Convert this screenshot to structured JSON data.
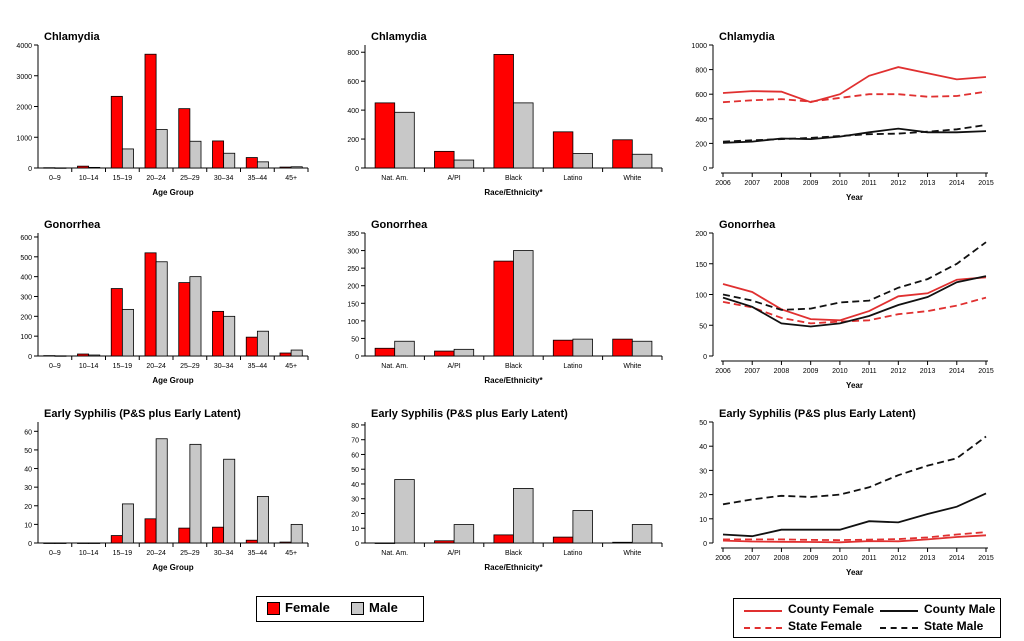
{
  "colors": {
    "female": "#ff0000",
    "male": "#c8c8c8",
    "county_female": "#e03030",
    "state_female": "#e03030",
    "county_male": "#111111",
    "state_male": "#111111"
  },
  "bar_legend": {
    "female": "Female",
    "male": "Male"
  },
  "line_legend": {
    "county_female": "County Female",
    "county_male": "County Male",
    "state_female": "State Female",
    "state_male": "State Male"
  },
  "chart_data": [
    {
      "type": "bar",
      "title": "Chlamydia",
      "xlabel": "Age Group",
      "ylim": [
        0,
        4000
      ],
      "yticks": [
        0,
        1000,
        2000,
        3000,
        4000
      ],
      "categories": [
        "0–9",
        "10–14",
        "15–19",
        "20–24",
        "25–29",
        "30–34",
        "35–44",
        "45+"
      ],
      "series": [
        {
          "name": "Female",
          "values": [
            10,
            60,
            2330,
            3700,
            1930,
            880,
            340,
            30
          ]
        },
        {
          "name": "Male",
          "values": [
            5,
            20,
            620,
            1250,
            870,
            480,
            200,
            40
          ]
        }
      ]
    },
    {
      "type": "bar",
      "title": "Chlamydia",
      "xlabel": "Race/Ethnicity*",
      "ylim": [
        0,
        850
      ],
      "yticks": [
        0,
        200,
        400,
        600,
        800
      ],
      "categories": [
        "Nat. Am.",
        "A/PI",
        "Black",
        "Latino",
        "White"
      ],
      "series": [
        {
          "name": "Female",
          "values": [
            450,
            115,
            785,
            250,
            195
          ]
        },
        {
          "name": "Male",
          "values": [
            385,
            55,
            450,
            100,
            95
          ]
        }
      ]
    },
    {
      "type": "line",
      "title": "Chlamydia",
      "xlabel": "Year",
      "ylim": [
        0,
        1000
      ],
      "yticks": [
        0,
        200,
        400,
        600,
        800,
        1000
      ],
      "x": [
        2006,
        2007,
        2008,
        2009,
        2010,
        2011,
        2012,
        2013,
        2014,
        2015
      ],
      "series": [
        {
          "name": "County Female",
          "values": [
            610,
            625,
            620,
            535,
            600,
            750,
            820,
            770,
            720,
            740
          ]
        },
        {
          "name": "State Female",
          "values": [
            535,
            550,
            560,
            540,
            570,
            600,
            600,
            580,
            585,
            620
          ]
        },
        {
          "name": "County Male",
          "values": [
            205,
            215,
            240,
            235,
            255,
            290,
            320,
            290,
            290,
            300
          ]
        },
        {
          "name": "State Male",
          "values": [
            215,
            225,
            235,
            245,
            260,
            275,
            280,
            295,
            315,
            350
          ]
        }
      ]
    },
    {
      "type": "bar",
      "title": "Gonorrhea",
      "xlabel": "Age Group",
      "ylim": [
        0,
        620
      ],
      "yticks": [
        0,
        100,
        200,
        300,
        400,
        500,
        600
      ],
      "categories": [
        "0–9",
        "10–14",
        "15–19",
        "20–24",
        "25–29",
        "30–34",
        "35–44",
        "45+"
      ],
      "series": [
        {
          "name": "Female",
          "values": [
            2,
            10,
            340,
            520,
            370,
            225,
            95,
            15
          ]
        },
        {
          "name": "Male",
          "values": [
            1,
            5,
            235,
            475,
            400,
            200,
            125,
            30
          ]
        }
      ]
    },
    {
      "type": "bar",
      "title": "Gonorrhea",
      "xlabel": "Race/Ethnicity*",
      "ylim": [
        0,
        350
      ],
      "yticks": [
        0,
        50,
        100,
        150,
        200,
        250,
        300,
        350
      ],
      "categories": [
        "Nat. Am.",
        "A/PI",
        "Black",
        "Latino",
        "White"
      ],
      "series": [
        {
          "name": "Female",
          "values": [
            22,
            14,
            270,
            45,
            48
          ]
        },
        {
          "name": "Male",
          "values": [
            42,
            19,
            300,
            48,
            42
          ]
        }
      ]
    },
    {
      "type": "line",
      "title": "Gonorrhea",
      "xlabel": "Year",
      "ylim": [
        0,
        200
      ],
      "yticks": [
        0,
        50,
        100,
        150,
        200
      ],
      "x": [
        2006,
        2007,
        2008,
        2009,
        2010,
        2011,
        2012,
        2013,
        2014,
        2015
      ],
      "series": [
        {
          "name": "County Female",
          "values": [
            117,
            104,
            76,
            60,
            58,
            73,
            97,
            102,
            124,
            128
          ]
        },
        {
          "name": "State Female",
          "values": [
            88,
            79,
            62,
            53,
            56,
            58,
            68,
            73,
            82,
            95
          ]
        },
        {
          "name": "County Male",
          "values": [
            95,
            80,
            53,
            48,
            53,
            65,
            83,
            96,
            120,
            130
          ]
        },
        {
          "name": "State Male",
          "values": [
            100,
            90,
            75,
            77,
            87,
            90,
            111,
            125,
            150,
            185
          ]
        }
      ]
    },
    {
      "type": "bar",
      "title": "Early Syphilis (P&S plus Early Latent)",
      "xlabel": "Age Group",
      "ylim": [
        0,
        65
      ],
      "yticks": [
        0,
        10,
        20,
        30,
        40,
        50,
        60
      ],
      "categories": [
        "0–9",
        "10–14",
        "15–19",
        "20–24",
        "25–29",
        "30–34",
        "35–44",
        "45+"
      ],
      "series": [
        {
          "name": "Female",
          "values": [
            0,
            0,
            4,
            13,
            8,
            8.5,
            1.5,
            0.5
          ]
        },
        {
          "name": "Male",
          "values": [
            0,
            0,
            21,
            56,
            53,
            45,
            25,
            10
          ]
        }
      ]
    },
    {
      "type": "bar",
      "title": "Early Syphilis (P&S plus Early Latent)",
      "xlabel": "Race/Ethnicity*",
      "ylim": [
        0,
        82
      ],
      "yticks": [
        0,
        10,
        20,
        30,
        40,
        50,
        60,
        70,
        80
      ],
      "categories": [
        "Nat. Am.",
        "A/PI",
        "Black",
        "Latino",
        "White"
      ],
      "series": [
        {
          "name": "Female",
          "values": [
            0,
            1.5,
            5.5,
            4,
            0.5
          ]
        },
        {
          "name": "Male",
          "values": [
            43,
            12.5,
            37,
            22,
            12.5
          ]
        }
      ]
    },
    {
      "type": "line",
      "title": "Early Syphilis (P&S plus Early Latent)",
      "xlabel": "Year",
      "ylim": [
        0,
        50
      ],
      "yticks": [
        0,
        10,
        20,
        30,
        40,
        50
      ],
      "x": [
        2006,
        2007,
        2008,
        2009,
        2010,
        2011,
        2012,
        2013,
        2014,
        2015
      ],
      "series": [
        {
          "name": "County Female",
          "values": [
            1,
            0.6,
            0.5,
            0.4,
            0.3,
            0.8,
            0.7,
            1.5,
            2.5,
            3.2
          ]
        },
        {
          "name": "State Female",
          "values": [
            1.5,
            1.5,
            1.5,
            1.3,
            1.2,
            1.4,
            1.6,
            2.3,
            3.5,
            4.5
          ]
        },
        {
          "name": "County Male",
          "values": [
            3.5,
            2.8,
            5.5,
            5.5,
            5.5,
            9,
            8.5,
            12,
            15,
            20.5
          ]
        },
        {
          "name": "State Male",
          "values": [
            16,
            18,
            19.5,
            19,
            20,
            23,
            28,
            32,
            35,
            44
          ]
        }
      ]
    }
  ]
}
